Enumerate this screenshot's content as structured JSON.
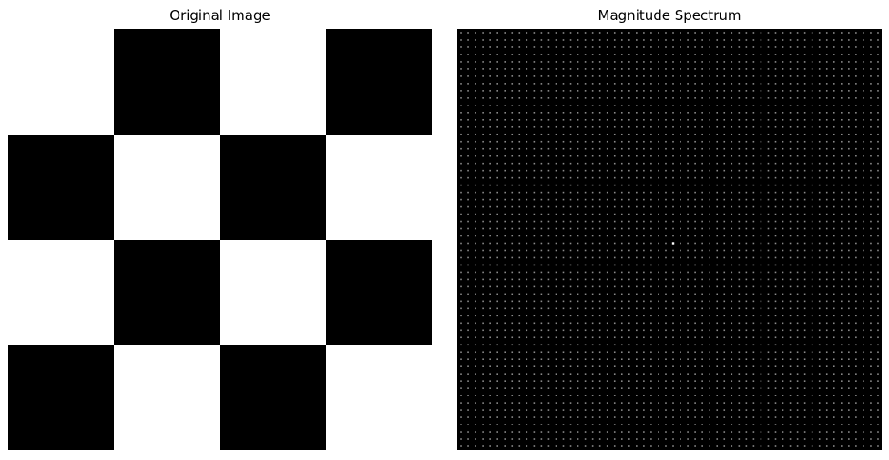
{
  "left_panel": {
    "title": "Original Image",
    "grid_rows": 4,
    "grid_cols": 4,
    "pattern": [
      [
        0,
        1,
        0,
        1
      ],
      [
        1,
        0,
        1,
        0
      ],
      [
        0,
        1,
        0,
        1
      ],
      [
        1,
        0,
        1,
        0
      ]
    ],
    "dark_color": "#000000",
    "light_color": "#ffffff"
  },
  "right_panel": {
    "title": "Magnitude Spectrum",
    "background_color": "#000000",
    "dot_color": "#8a8a8a",
    "center_dot_color": "#ffffff",
    "dot_columns": 58,
    "dot_rows": 58
  }
}
